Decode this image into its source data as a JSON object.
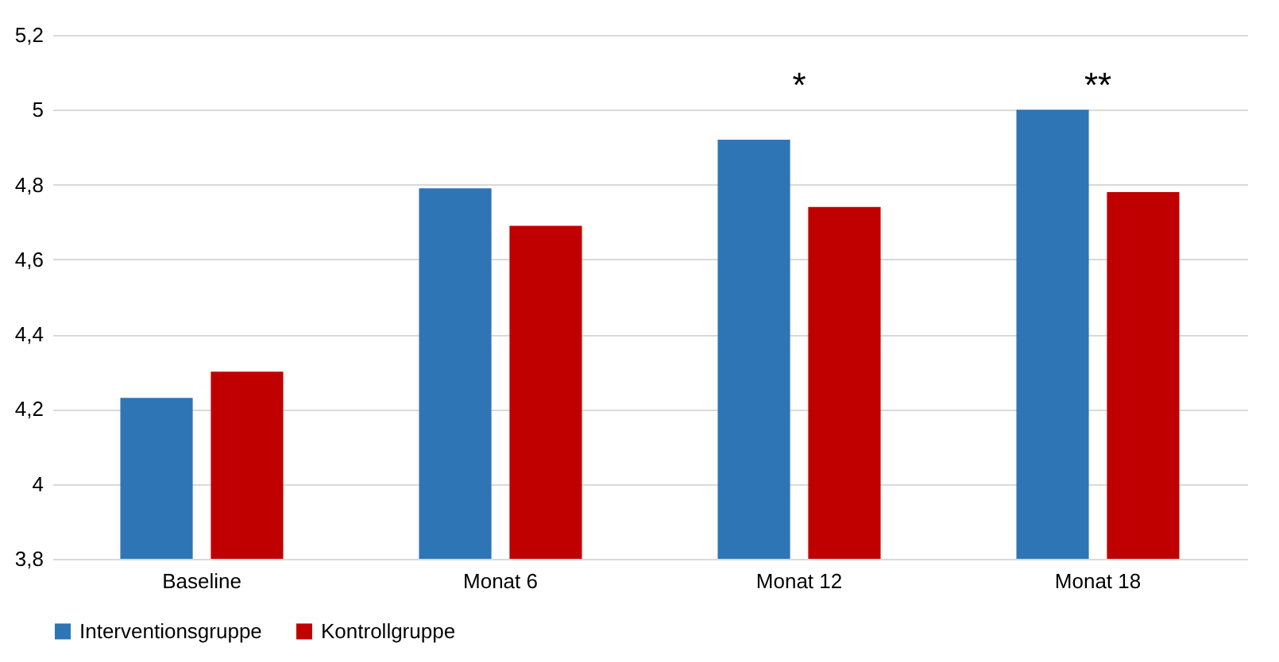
{
  "chart_data": {
    "type": "bar",
    "categories": [
      "Baseline",
      "Monat 6",
      "Monat 12",
      "Monat 18"
    ],
    "series": [
      {
        "name": "Interventionsgruppe",
        "color": "#2e75b6",
        "values": [
          4.23,
          4.79,
          4.92,
          5.0
        ]
      },
      {
        "name": "Kontrollgruppe",
        "color": "#c00000",
        "values": [
          4.3,
          4.69,
          4.74,
          4.78
        ]
      }
    ],
    "ylim": [
      3.8,
      5.2
    ],
    "yticks": [
      {
        "value": 3.8,
        "label": "3,8"
      },
      {
        "value": 4,
        "label": "4"
      },
      {
        "value": 4.2,
        "label": "4,2"
      },
      {
        "value": 4.4,
        "label": "4,4"
      },
      {
        "value": 4.6,
        "label": "4,6"
      },
      {
        "value": 4.8,
        "label": "4,8"
      },
      {
        "value": 5,
        "label": "5"
      },
      {
        "value": 5.2,
        "label": "5,2"
      }
    ],
    "annotations": [
      "*",
      "**"
    ],
    "grid": "y",
    "legend": "bottom"
  }
}
